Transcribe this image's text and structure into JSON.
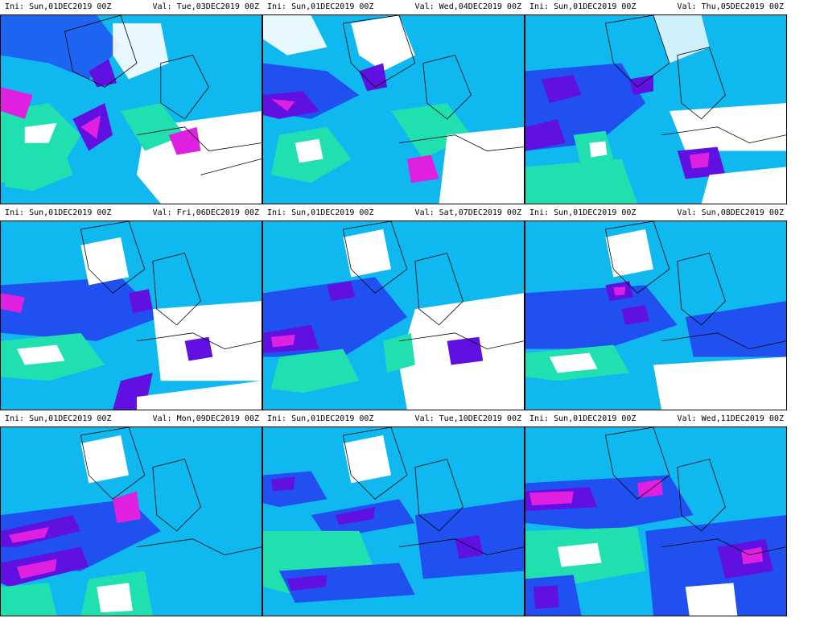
{
  "panels": [
    {
      "ini": "Ini: Sun,01DEC2019 00Z",
      "val": "Val: Tue,03DEC2019 00Z"
    },
    {
      "ini": "Ini: Sun,01DEC2019 00Z",
      "val": "Val: Wed,04DEC2019 00Z"
    },
    {
      "ini": "Ini: Sun,01DEC2019 00Z",
      "val": "Val: Thu,05DEC2019 00Z"
    },
    {
      "ini": "Ini: Sun,01DEC2019 00Z",
      "val": "Val: Fri,06DEC2019 00Z"
    },
    {
      "ini": "Ini: Sun,01DEC2019 00Z",
      "val": "Val: Sat,07DEC2019 00Z"
    },
    {
      "ini": "Ini: Sun,01DEC2019 00Z",
      "val": "Val: Sun,08DEC2019 00Z"
    },
    {
      "ini": "Ini: Sun,01DEC2019 00Z",
      "val": "Val: Mon,09DEC2019 00Z"
    },
    {
      "ini": "Ini: Sun,01DEC2019 00Z",
      "val": "Val: Tue,10DEC2019 00Z"
    },
    {
      "ini": "Ini: Sun,01DEC2019 00Z",
      "val": "Val: Wed,11DEC2019 00Z"
    }
  ],
  "colors": {
    "field_low": "#20e0b0",
    "field_mid": "#10b8f0",
    "field_high": "#2050f0",
    "field_peak": "#6010e0",
    "field_extreme": "#e020e0",
    "clear": "#ffffff",
    "coastline": "#000000"
  }
}
